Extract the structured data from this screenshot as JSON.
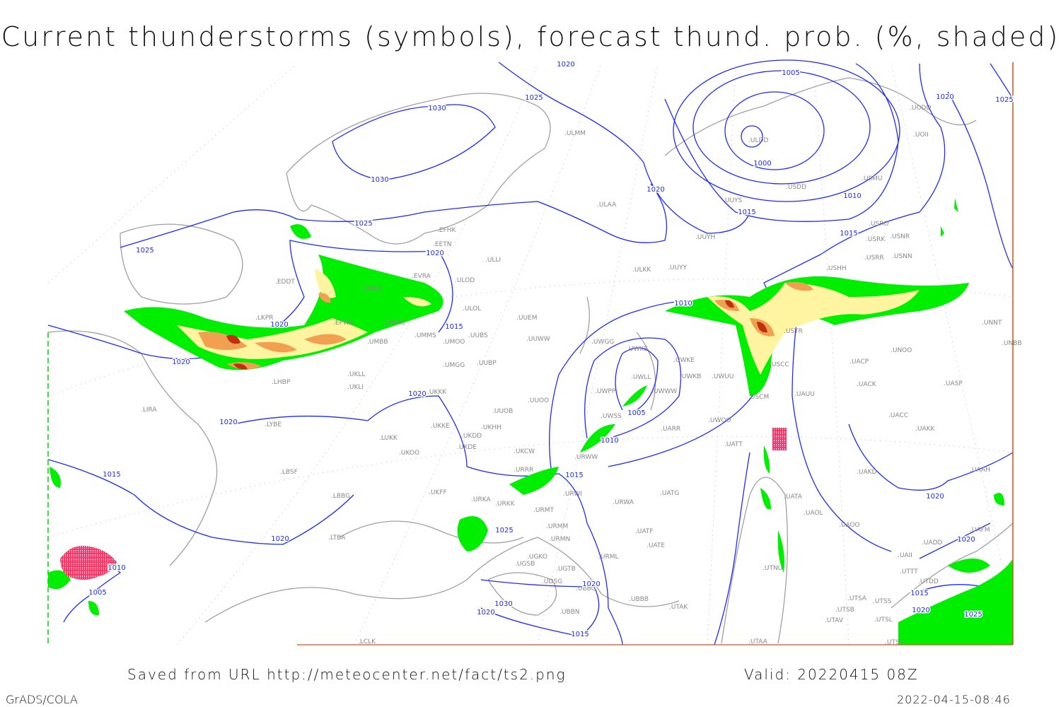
{
  "title": "Current thunderstorms (symbols), forecast thund. prob. (%, shaded)",
  "footer": {
    "saved": "Saved from URL http://meteocenter.net/fact/ts2.png",
    "valid": "Valid: 20220415 08Z",
    "software": "GrADS/COLA",
    "timestamp": "2022-04-15-08:46"
  },
  "colors": {
    "isobar": "#1e2bff",
    "coastline": "#a0a0a0",
    "prob_low": "#00ee00",
    "prob_mid": "#fff5a0",
    "prob_high": "#f0a050",
    "prob_max": "#c03010",
    "thunderstorm_symbol": "#ff3366"
  },
  "stations": [
    "EFHK",
    "EETN",
    "EVRA",
    "ULOD",
    "ULLI",
    "ULOL",
    "UMKK",
    "EPWA",
    "UMMG",
    "UMBB",
    "UMMS",
    "UMOO",
    "UUBS",
    "UUEM",
    "UUWW",
    "UMGG",
    "UUBP",
    "UKLL",
    "UKLI",
    "UKKK",
    "UUOO",
    "UUOB",
    "UKHH",
    "UKDD",
    "UKDE",
    "UKKE",
    "UKOO",
    "LUKK",
    "UKCW",
    "URRR",
    "UKFF",
    "URKA",
    "URKK",
    "URWI",
    "URMT",
    "URMM",
    "URMN",
    "UGKO",
    "UGTB",
    "UGSB",
    "UDSG",
    "UBBG",
    "UBBN",
    "UBBB",
    "URML",
    "URWA",
    "UATG",
    "UATT",
    "UATA",
    "UAOL",
    "UAOO",
    "UATE",
    "UATF",
    "UTAK",
    "UTAA",
    "UTNU",
    "UTSA",
    "UTSB",
    "UTAV",
    "UTSS",
    "UTSL",
    "UTST",
    "UAII",
    "UTTT",
    "UTDD",
    "ULAA",
    "ULMM",
    "ULKK",
    "UUYY",
    "UUYH",
    "UUYS",
    "ULDD",
    "USDD",
    "USMU",
    "UODD",
    "UOII",
    "USRO",
    "USRK",
    "USNR",
    "USRR",
    "USNN",
    "USHH",
    "USTR",
    "UNOO",
    "UACP",
    "UACK",
    "UASP",
    "UAUU",
    "USCC",
    "USCM",
    "UWOO",
    "UWUU",
    "UWKB",
    "UWKE",
    "UWKS",
    "UWGG",
    "UWLL",
    "UWWW",
    "UWPP",
    "UWSS",
    "UARR",
    "URWW",
    "UACC",
    "UAKK",
    "UAKD",
    "UAAH",
    "UNNT",
    "UNBB",
    "UADD",
    "UAFM",
    "EDDT",
    "LKPR",
    "LHBP",
    "LIRA",
    "LYBE",
    "LBSF",
    "LBBG",
    "LTBA",
    "LCLK"
  ],
  "isobar_labels": [
    "1020",
    "1025",
    "1030",
    "1030",
    "1025",
    "1025",
    "1020",
    "1020",
    "1020",
    "1015",
    "1020",
    "1020",
    "1015",
    "1020",
    "1010",
    "1005",
    "1025",
    "1020",
    "1030",
    "1020",
    "1015",
    "1015",
    "1010",
    "1005",
    "1010",
    "1020",
    "1015",
    "1010",
    "1000",
    "1005",
    "1015",
    "1020",
    "1025",
    "1020",
    "1020",
    "1015",
    "1020",
    "1025",
    "1020"
  ]
}
